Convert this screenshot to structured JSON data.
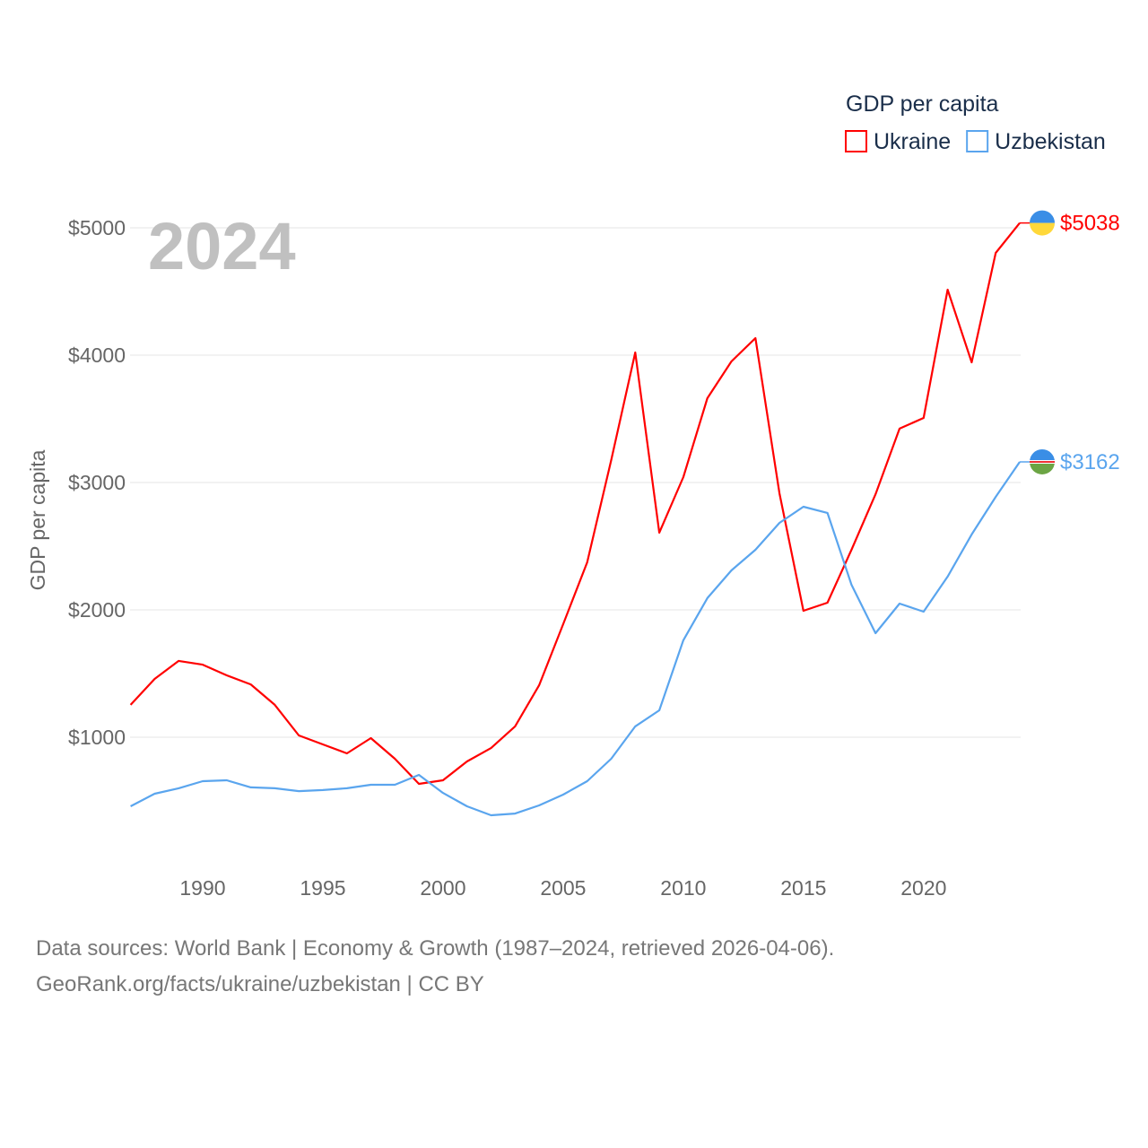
{
  "chart_data": {
    "type": "line",
    "title": "GDP per capita",
    "year_label": "2024",
    "ylabel": "GDP per capita",
    "xlabel": "",
    "xlim": [
      1987,
      2024
    ],
    "ylim": [
      0,
      5300
    ],
    "x_ticks": [
      1990,
      1995,
      2000,
      2005,
      2010,
      2015,
      2020
    ],
    "y_ticks": [
      1000,
      2000,
      3000,
      4000,
      5000
    ],
    "y_tick_labels": [
      "$1000",
      "$2000",
      "$3000",
      "$4000",
      "$5000"
    ],
    "grid": true,
    "legend_position": "top-right",
    "x": [
      1987,
      1988,
      1989,
      1990,
      1991,
      1992,
      1993,
      1994,
      1995,
      1996,
      1997,
      1998,
      1999,
      2000,
      2001,
      2002,
      2003,
      2004,
      2005,
      2006,
      2007,
      2008,
      2009,
      2010,
      2011,
      2012,
      2013,
      2014,
      2015,
      2016,
      2017,
      2018,
      2019,
      2020,
      2021,
      2022,
      2023,
      2024
    ],
    "series": [
      {
        "name": "Ukraine",
        "color": "#ff0000",
        "end_label": "$5038",
        "values": [
          1254,
          1458,
          1599,
          1570,
          1486,
          1415,
          1254,
          1014,
          944,
          873,
          993,
          831,
          634,
          662,
          810,
          915,
          1085,
          1408,
          1887,
          2373,
          3176,
          4021,
          2606,
          3042,
          3662,
          3951,
          4134,
          2915,
          1993,
          2056,
          2472,
          2908,
          3423,
          3507,
          4514,
          3944,
          4803,
          5038
        ]
      },
      {
        "name": "Uzbekistan",
        "color": "#5aa5ee",
        "end_label": "$3162",
        "values": [
          458,
          556,
          599,
          655,
          662,
          606,
          599,
          577,
          585,
          599,
          627,
          627,
          704,
          563,
          458,
          387,
          401,
          465,
          549,
          655,
          831,
          1085,
          1211,
          1761,
          2092,
          2310,
          2472,
          2683,
          2810,
          2761,
          2197,
          1817,
          2049,
          1986,
          2261,
          2592,
          2887,
          3162
        ]
      }
    ]
  },
  "footer": {
    "line1": "Data sources: World Bank | Economy & Growth (1987–2024, retrieved 2026-04-06).",
    "line2": "GeoRank.org/facts/ukraine/uzbekistan | CC BY"
  }
}
